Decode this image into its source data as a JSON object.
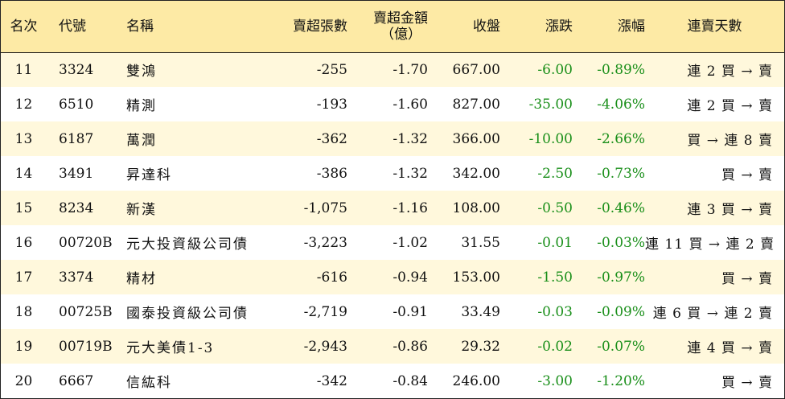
{
  "header": {
    "rank": "名次",
    "code": "代號",
    "name": "名稱",
    "sell_volume": "賣超張數",
    "sell_amount_line1": "賣超金額",
    "sell_amount_line2": "（億）",
    "close": "收盤",
    "change": "漲跌",
    "change_pct": "漲幅",
    "streak": "連賣天數"
  },
  "colors": {
    "header_bg": "#fdeaa5",
    "alt_row_bg": "#fff8dc",
    "negative_text": "#1a8f1a"
  },
  "rows": [
    {
      "rank": "11",
      "code": "3324",
      "name": "雙鴻",
      "volume": "-255",
      "amount": "-1.70",
      "close": "667.00",
      "change": "-6.00",
      "pct": "-0.89%",
      "streak": "連 2 買 → 賣"
    },
    {
      "rank": "12",
      "code": "6510",
      "name": "精測",
      "volume": "-193",
      "amount": "-1.60",
      "close": "827.00",
      "change": "-35.00",
      "pct": "-4.06%",
      "streak": "連 2 買 → 賣"
    },
    {
      "rank": "13",
      "code": "6187",
      "name": "萬潤",
      "volume": "-362",
      "amount": "-1.32",
      "close": "366.00",
      "change": "-10.00",
      "pct": "-2.66%",
      "streak": "買 → 連 8 賣"
    },
    {
      "rank": "14",
      "code": "3491",
      "name": "昇達科",
      "volume": "-386",
      "amount": "-1.32",
      "close": "342.00",
      "change": "-2.50",
      "pct": "-0.73%",
      "streak": "買 → 賣"
    },
    {
      "rank": "15",
      "code": "8234",
      "name": "新漢",
      "volume": "-1,075",
      "amount": "-1.16",
      "close": "108.00",
      "change": "-0.50",
      "pct": "-0.46%",
      "streak": "連 3 買 → 賣"
    },
    {
      "rank": "16",
      "code": "00720B",
      "name": "元大投資級公司債",
      "volume": "-3,223",
      "amount": "-1.02",
      "close": "31.55",
      "change": "-0.01",
      "pct": "-0.03%",
      "streak": "連 11 買 → 連 2 賣"
    },
    {
      "rank": "17",
      "code": "3374",
      "name": "精材",
      "volume": "-616",
      "amount": "-0.94",
      "close": "153.00",
      "change": "-1.50",
      "pct": "-0.97%",
      "streak": "買 → 賣"
    },
    {
      "rank": "18",
      "code": "00725B",
      "name": "國泰投資級公司債",
      "volume": "-2,719",
      "amount": "-0.91",
      "close": "33.49",
      "change": "-0.03",
      "pct": "-0.09%",
      "streak": "連 6 買 → 連 2 賣"
    },
    {
      "rank": "19",
      "code": "00719B",
      "name": "元大美債1-3",
      "volume": "-2,943",
      "amount": "-0.86",
      "close": "29.32",
      "change": "-0.02",
      "pct": "-0.07%",
      "streak": "連 4 買 → 賣"
    },
    {
      "rank": "20",
      "code": "6667",
      "name": "信紘科",
      "volume": "-342",
      "amount": "-0.84",
      "close": "246.00",
      "change": "-3.00",
      "pct": "-1.20%",
      "streak": "買 → 賣"
    }
  ]
}
